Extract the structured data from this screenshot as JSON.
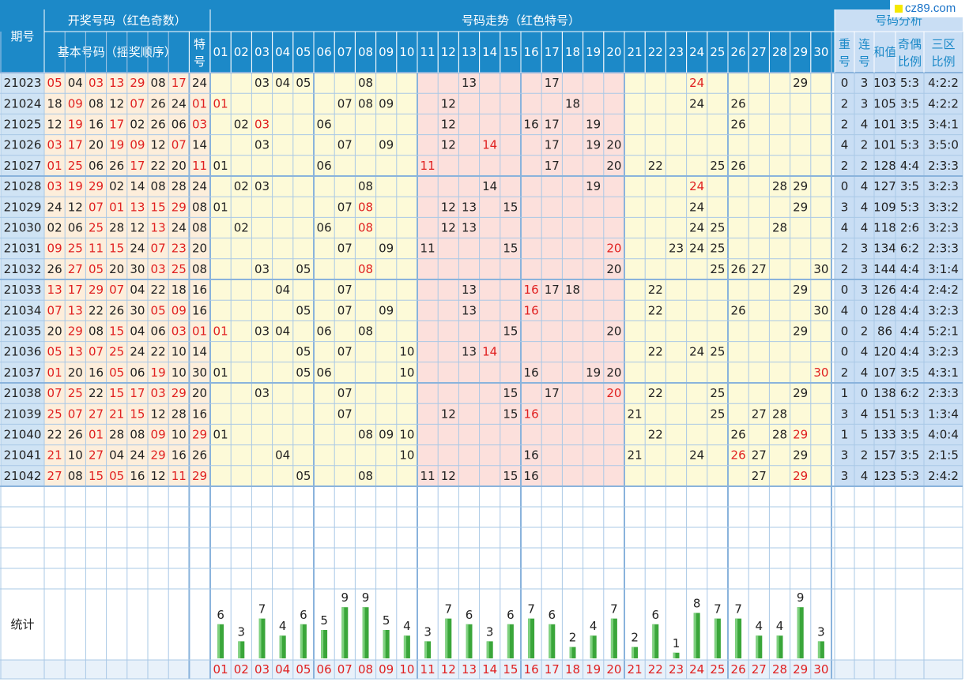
{
  "header": {
    "period_label": "期号",
    "draw_group": "开奖号码（红色奇数）",
    "basic_numbers": "基本号码（摇奖顺序）",
    "special_label": [
      "特",
      "号"
    ],
    "trend_group": "号码走势（红色特号）",
    "analysis_group": "号码分析",
    "repeat_label": [
      "重",
      "号"
    ],
    "consecutive_label": [
      "连",
      "号"
    ],
    "sum_label": "和值",
    "odd_even_label": [
      "奇偶",
      "比例"
    ],
    "zone_label": [
      "三区",
      "比例"
    ]
  },
  "watermark": "cz89.com",
  "trend_numbers": [
    "01",
    "02",
    "03",
    "04",
    "05",
    "06",
    "07",
    "08",
    "09",
    "10",
    "11",
    "12",
    "13",
    "14",
    "15",
    "16",
    "17",
    "18",
    "19",
    "20",
    "21",
    "22",
    "23",
    "24",
    "25",
    "26",
    "27",
    "28",
    "29",
    "30"
  ],
  "rows": [
    {
      "period": "21023",
      "basic": [
        "05",
        "04",
        "03",
        "13",
        "29",
        "08",
        "17"
      ],
      "special": "24",
      "repeat": "0",
      "consec": "3",
      "sum": "103",
      "oe": "5:3",
      "zone": "4:2:2"
    },
    {
      "period": "21024",
      "basic": [
        "18",
        "09",
        "08",
        "12",
        "07",
        "26",
        "24"
      ],
      "special": "01",
      "repeat": "2",
      "consec": "3",
      "sum": "105",
      "oe": "3:5",
      "zone": "4:2:2"
    },
    {
      "period": "21025",
      "basic": [
        "12",
        "19",
        "16",
        "17",
        "02",
        "26",
        "06"
      ],
      "special": "03",
      "repeat": "2",
      "consec": "4",
      "sum": "101",
      "oe": "3:5",
      "zone": "3:4:1"
    },
    {
      "period": "21026",
      "basic": [
        "03",
        "17",
        "20",
        "19",
        "09",
        "12",
        "07"
      ],
      "special": "14",
      "repeat": "4",
      "consec": "2",
      "sum": "101",
      "oe": "5:3",
      "zone": "3:5:0"
    },
    {
      "period": "21027",
      "basic": [
        "01",
        "25",
        "06",
        "26",
        "17",
        "22",
        "20"
      ],
      "special": "11",
      "repeat": "2",
      "consec": "2",
      "sum": "128",
      "oe": "4:4",
      "zone": "2:3:3"
    },
    {
      "period": "21028",
      "basic": [
        "03",
        "19",
        "29",
        "02",
        "14",
        "08",
        "28"
      ],
      "special": "24",
      "repeat": "0",
      "consec": "4",
      "sum": "127",
      "oe": "3:5",
      "zone": "3:2:3"
    },
    {
      "period": "21029",
      "basic": [
        "24",
        "12",
        "07",
        "01",
        "13",
        "15",
        "29"
      ],
      "special": "08",
      "repeat": "3",
      "consec": "4",
      "sum": "109",
      "oe": "5:3",
      "zone": "3:3:2"
    },
    {
      "period": "21030",
      "basic": [
        "02",
        "06",
        "25",
        "28",
        "12",
        "13",
        "24"
      ],
      "special": "08",
      "repeat": "4",
      "consec": "4",
      "sum": "118",
      "oe": "2:6",
      "zone": "3:2:3"
    },
    {
      "period": "21031",
      "basic": [
        "09",
        "25",
        "11",
        "15",
        "24",
        "07",
        "23"
      ],
      "special": "20",
      "repeat": "2",
      "consec": "3",
      "sum": "134",
      "oe": "6:2",
      "zone": "2:3:3"
    },
    {
      "period": "21032",
      "basic": [
        "26",
        "27",
        "05",
        "20",
        "30",
        "03",
        "25"
      ],
      "special": "08",
      "repeat": "2",
      "consec": "3",
      "sum": "144",
      "oe": "4:4",
      "zone": "3:1:4"
    },
    {
      "period": "21033",
      "basic": [
        "13",
        "17",
        "29",
        "07",
        "04",
        "22",
        "18"
      ],
      "special": "16",
      "repeat": "0",
      "consec": "3",
      "sum": "126",
      "oe": "4:4",
      "zone": "2:4:2"
    },
    {
      "period": "21034",
      "basic": [
        "07",
        "13",
        "22",
        "26",
        "30",
        "05",
        "09"
      ],
      "special": "16",
      "repeat": "4",
      "consec": "0",
      "sum": "128",
      "oe": "4:4",
      "zone": "3:2:3"
    },
    {
      "period": "21035",
      "basic": [
        "20",
        "29",
        "08",
        "15",
        "04",
        "06",
        "03"
      ],
      "special": "01",
      "repeat": "0",
      "consec": "2",
      "sum": "86",
      "oe": "4:4",
      "zone": "5:2:1"
    },
    {
      "period": "21036",
      "basic": [
        "05",
        "13",
        "07",
        "25",
        "24",
        "22",
        "10"
      ],
      "special": "14",
      "repeat": "0",
      "consec": "4",
      "sum": "120",
      "oe": "4:4",
      "zone": "3:2:3"
    },
    {
      "period": "21037",
      "basic": [
        "01",
        "20",
        "16",
        "05",
        "06",
        "19",
        "10"
      ],
      "special": "30",
      "repeat": "2",
      "consec": "4",
      "sum": "107",
      "oe": "3:5",
      "zone": "4:3:1"
    },
    {
      "period": "21038",
      "basic": [
        "07",
        "25",
        "22",
        "15",
        "17",
        "03",
        "29"
      ],
      "special": "20",
      "repeat": "1",
      "consec": "0",
      "sum": "138",
      "oe": "6:2",
      "zone": "2:3:3"
    },
    {
      "period": "21039",
      "basic": [
        "25",
        "07",
        "27",
        "21",
        "15",
        "12",
        "28"
      ],
      "special": "16",
      "repeat": "3",
      "consec": "4",
      "sum": "151",
      "oe": "5:3",
      "zone": "1:3:4"
    },
    {
      "period": "21040",
      "basic": [
        "22",
        "26",
        "01",
        "28",
        "08",
        "09",
        "10"
      ],
      "special": "29",
      "repeat": "1",
      "consec": "5",
      "sum": "133",
      "oe": "3:5",
      "zone": "4:0:4"
    },
    {
      "period": "21041",
      "basic": [
        "21",
        "10",
        "27",
        "04",
        "24",
        "29",
        "16"
      ],
      "special": "26",
      "repeat": "3",
      "consec": "2",
      "sum": "157",
      "oe": "3:5",
      "zone": "2:1:5"
    },
    {
      "period": "21042",
      "basic": [
        "27",
        "08",
        "15",
        "05",
        "16",
        "12",
        "11"
      ],
      "special": "29",
      "repeat": "3",
      "consec": "4",
      "sum": "123",
      "oe": "5:3",
      "zone": "2:4:2"
    }
  ],
  "stats": {
    "label": "统计",
    "counts": [
      6,
      3,
      7,
      4,
      6,
      5,
      9,
      9,
      5,
      4,
      3,
      7,
      6,
      3,
      6,
      7,
      6,
      2,
      4,
      7,
      2,
      6,
      1,
      8,
      7,
      7,
      4,
      4,
      9,
      3
    ]
  },
  "colors": {
    "header_bg": "#1c89c8",
    "header_text": "#ffffff",
    "analysis_bg": "#c9def4",
    "yellow_bg": "#fdfad8",
    "pink_bg": "#fce0dc",
    "basic_bg": "#fdeedb",
    "period_bg": "#cfe3f4",
    "grid_line": "#a9c8e6",
    "red_text": "#e02020",
    "bar_green": "#3aa63a"
  }
}
